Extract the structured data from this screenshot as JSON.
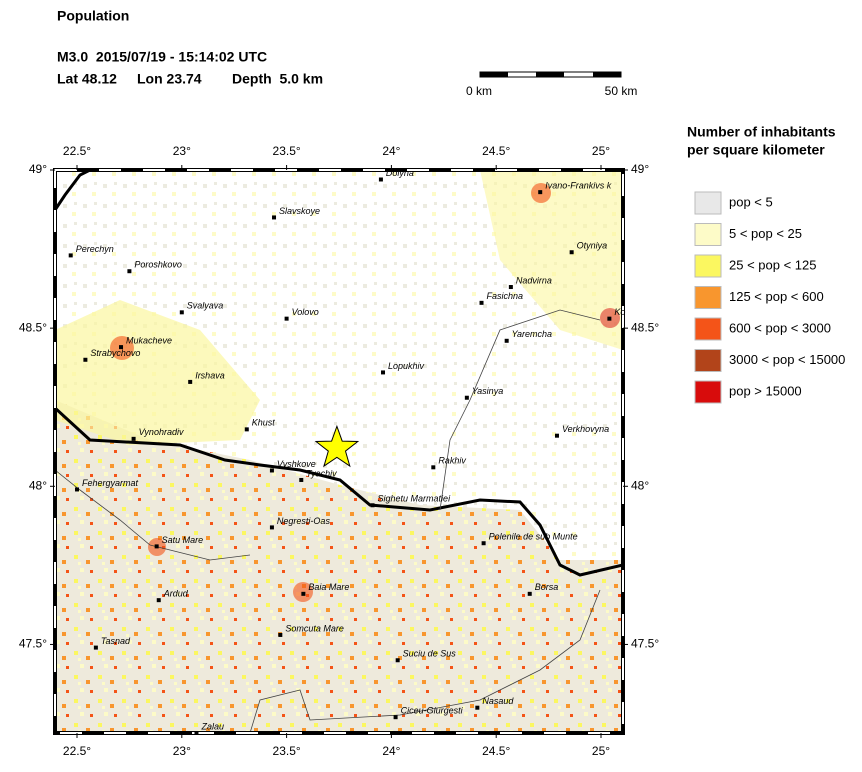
{
  "header": {
    "title": "Population",
    "event": "M3.0  2015/07/19 - 15:14:02 UTC",
    "lat": "Lat 48.12",
    "lon": "Lon 23.74",
    "depth": "Depth  5.0 km"
  },
  "scale_bar": {
    "start": "0 km",
    "end": "50 km"
  },
  "map": {
    "lonlim": [
      22.395,
      25.105
    ],
    "latlim": [
      47.22,
      49.0
    ],
    "lon_ticks": [
      {
        "value": 22.5,
        "label": "22.5°"
      },
      {
        "value": 23,
        "label": "23°"
      },
      {
        "value": 23.5,
        "label": "23.5°"
      },
      {
        "value": 24,
        "label": "24°"
      },
      {
        "value": 24.5,
        "label": "24.5°"
      },
      {
        "value": 25,
        "label": "25°"
      }
    ],
    "lat_ticks": [
      {
        "value": 47.5,
        "label": "47.5°"
      },
      {
        "value": 48,
        "label": "48°"
      },
      {
        "value": 48.5,
        "label": "48.5°"
      },
      {
        "value": 49,
        "label": "49°"
      }
    ],
    "epicenter": {
      "lon": 23.74,
      "lat": 48.12,
      "color": "#ffff00"
    },
    "cities": [
      {
        "name": "Dolyna",
        "lon": 23.95,
        "lat": 48.97
      },
      {
        "name": "Ivano-Frankivs k",
        "lon": 24.71,
        "lat": 48.93
      },
      {
        "name": "Slavskoye",
        "lon": 23.44,
        "lat": 48.85
      },
      {
        "name": "Perechyn",
        "lon": 22.47,
        "lat": 48.73
      },
      {
        "name": "Otyniya",
        "lon": 24.86,
        "lat": 48.74
      },
      {
        "name": "Poroshkovo",
        "lon": 22.75,
        "lat": 48.68
      },
      {
        "name": "Nadvirna",
        "lon": 24.57,
        "lat": 48.63
      },
      {
        "name": "Fasichna",
        "lon": 24.43,
        "lat": 48.58
      },
      {
        "name": "Svalyava",
        "lon": 23.0,
        "lat": 48.55
      },
      {
        "name": "Volovo",
        "lon": 23.5,
        "lat": 48.53
      },
      {
        "name": "Ko",
        "lon": 25.04,
        "lat": 48.53
      },
      {
        "name": "Mukacheve",
        "lon": 22.71,
        "lat": 48.44
      },
      {
        "name": "Yaremcha",
        "lon": 24.55,
        "lat": 48.46
      },
      {
        "name": "Strabychovo",
        "lon": 22.54,
        "lat": 48.4
      },
      {
        "name": "Lopukhiv",
        "lon": 23.96,
        "lat": 48.36
      },
      {
        "name": "Irshava",
        "lon": 23.04,
        "lat": 48.33
      },
      {
        "name": "Yasinya",
        "lon": 24.36,
        "lat": 48.28
      },
      {
        "name": "Khust",
        "lon": 23.31,
        "lat": 48.18
      },
      {
        "name": "Vynohradiv",
        "lon": 22.77,
        "lat": 48.15
      },
      {
        "name": "Verkhovyna",
        "lon": 24.79,
        "lat": 48.16
      },
      {
        "name": "Vyshkove",
        "lon": 23.43,
        "lat": 48.05
      },
      {
        "name": "Rakhiv",
        "lon": 24.2,
        "lat": 48.06
      },
      {
        "name": "Tyachiv",
        "lon": 23.57,
        "lat": 48.02
      },
      {
        "name": "Fehergyarmat",
        "lon": 22.5,
        "lat": 47.99
      },
      {
        "name": "Sighetu Marmatiei",
        "lon": 23.91,
        "lat": 47.94
      },
      {
        "name": "Negresti-Oas",
        "lon": 23.43,
        "lat": 47.87
      },
      {
        "name": "Satu Mare",
        "lon": 22.88,
        "lat": 47.81
      },
      {
        "name": "Polenile de sub Munte",
        "lon": 24.44,
        "lat": 47.82
      },
      {
        "name": "Ardud",
        "lon": 22.89,
        "lat": 47.64
      },
      {
        "name": "Baia Mare",
        "lon": 23.58,
        "lat": 47.66
      },
      {
        "name": "Borsa",
        "lon": 24.66,
        "lat": 47.66
      },
      {
        "name": "Somcuta Mare",
        "lon": 23.47,
        "lat": 47.53
      },
      {
        "name": "Tasnad",
        "lon": 22.59,
        "lat": 47.49
      },
      {
        "name": "Suciu de Sus",
        "lon": 24.03,
        "lat": 47.45
      },
      {
        "name": "Nasaud",
        "lon": 24.41,
        "lat": 47.3
      },
      {
        "name": "Ciceu-Giurgesti",
        "lon": 24.02,
        "lat": 47.27
      },
      {
        "name": "Zalau",
        "lon": 23.07,
        "lat": 47.22
      }
    ]
  },
  "legend": {
    "title": [
      "Number of inhabitants",
      "per square kilometer"
    ],
    "items": [
      {
        "label": "pop < 5",
        "color": "#e8e8e8"
      },
      {
        "label": "5 < pop < 25",
        "color": "#fdfbc8"
      },
      {
        "label": "25 < pop < 125",
        "color": "#fbf760"
      },
      {
        "label": "125 < pop < 600",
        "color": "#f8962e"
      },
      {
        "label": "600 < pop < 3000",
        "color": "#f45418"
      },
      {
        "label": "3000 < pop < 15000",
        "color": "#b2441a"
      },
      {
        "label": "pop > 15000",
        "color": "#d80c0c"
      }
    ]
  }
}
